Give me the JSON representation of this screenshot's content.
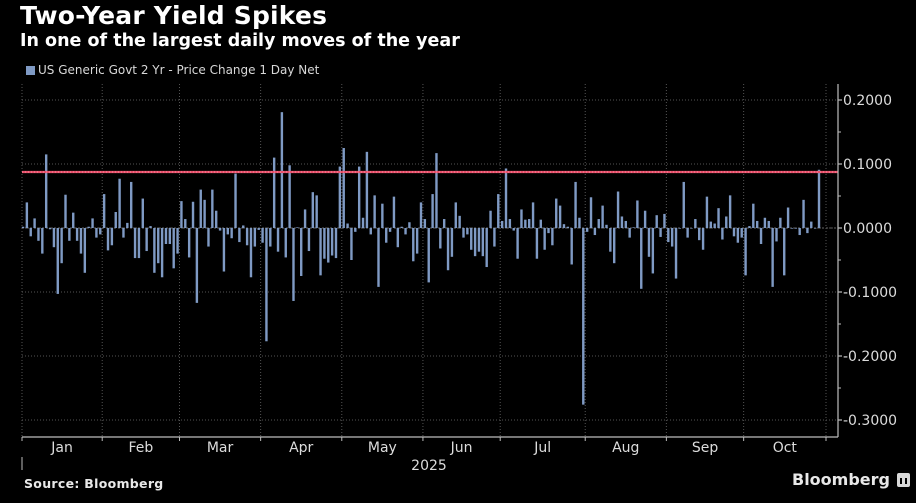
{
  "header": {
    "title": "Two-Year Yield Spikes",
    "subtitle": "In one of the largest daily moves of the year"
  },
  "legend": {
    "label": "US Generic Govt 2 Yr - Price Change 1 Day Net",
    "color": "#7f9ac4"
  },
  "footer": {
    "source": "Source: Bloomberg",
    "brand": "Bloomberg"
  },
  "colors": {
    "bar": "#7f9ac4",
    "reference_line": "#e8506a",
    "grid": "#555555",
    "axis": "#bdbdbd"
  },
  "chart_data": {
    "type": "bar",
    "title": "Two-Year Yield Spikes",
    "subtitle": "In one of the largest daily moves of the year",
    "xlabel": "2025",
    "ylabel": "",
    "ylim": [
      -0.33,
      0.225
    ],
    "y_ticks": [
      0.2,
      0.1,
      0.0,
      -0.1,
      -0.2,
      -0.3
    ],
    "y_tick_labels": [
      "0.2000",
      "0.1000",
      "0.0000",
      "-0.1000",
      "-0.2000",
      "-0.3000"
    ],
    "y_axis_side": "right",
    "grid": true,
    "legend_position": "top-left",
    "reference_line": {
      "value": 0.0875,
      "color": "#e8506a"
    },
    "months": [
      {
        "label": "Jan",
        "start_index": 0
      },
      {
        "label": "Feb",
        "start_index": 21
      },
      {
        "label": "Mar",
        "start_index": 41
      },
      {
        "label": "Apr",
        "start_index": 62
      },
      {
        "label": "May",
        "start_index": 83
      },
      {
        "label": "Jun",
        "start_index": 104
      },
      {
        "label": "Jul",
        "start_index": 124
      },
      {
        "label": "Aug",
        "start_index": 146
      },
      {
        "label": "Sep",
        "start_index": 167
      },
      {
        "label": "Oct",
        "start_index": 187
      }
    ],
    "year_label": "2025",
    "series": [
      {
        "name": "US Generic Govt 2 Yr - Price Change 1 Day Net",
        "values": [
          0.002,
          0.04,
          -0.013,
          0.015,
          -0.02,
          -0.04,
          0.115,
          -0.002,
          -0.03,
          -0.103,
          -0.055,
          0.052,
          -0.02,
          0.024,
          -0.02,
          -0.04,
          -0.07,
          0.002,
          0.015,
          -0.015,
          -0.01,
          0.053,
          -0.035,
          -0.027,
          0.025,
          0.077,
          -0.015,
          0.008,
          0.072,
          -0.047,
          -0.047,
          0.046,
          -0.036,
          0.003,
          -0.07,
          -0.055,
          -0.077,
          -0.025,
          -0.025,
          -0.063,
          -0.04,
          0.042,
          0.014,
          -0.046,
          0.041,
          -0.117,
          0.06,
          0.044,
          -0.029,
          0.06,
          0.027,
          -0.004,
          -0.068,
          -0.01,
          -0.016,
          0.085,
          -0.022,
          0.004,
          -0.027,
          -0.077,
          -0.029,
          -0.003,
          -0.023,
          -0.177,
          -0.029,
          0.11,
          -0.037,
          0.181,
          -0.046,
          0.098,
          -0.114,
          0.001,
          -0.075,
          0.029,
          -0.036,
          0.056,
          0.051,
          -0.074,
          -0.048,
          -0.054,
          -0.043,
          -0.047,
          0.096,
          0.125,
          0.007,
          -0.05,
          -0.006,
          0.096,
          0.016,
          0.119,
          -0.01,
          0.051,
          -0.092,
          0.038,
          -0.023,
          -0.006,
          0.049,
          -0.03,
          0.002,
          -0.01,
          0.009,
          -0.052,
          -0.04,
          0.04,
          0.014,
          -0.085,
          0.053,
          0.117,
          -0.032,
          0.014,
          -0.066,
          -0.045,
          0.04,
          0.019,
          -0.015,
          -0.01,
          -0.034,
          -0.044,
          -0.037,
          -0.044,
          -0.061,
          0.027,
          -0.029,
          0.053,
          0.011,
          0.093,
          0.014,
          -0.004,
          -0.048,
          0.029,
          0.013,
          0.014,
          0.04,
          -0.048,
          0.013,
          -0.034,
          -0.008,
          -0.027,
          0.046,
          0.035,
          0.006,
          0.002,
          -0.057,
          0.072,
          0.016,
          -0.276,
          -0.006,
          0.048,
          -0.011,
          0.014,
          0.035,
          0.005,
          -0.037,
          -0.055,
          0.057,
          0.018,
          0.011,
          -0.015,
          0.001,
          0.043,
          -0.095,
          0.027,
          -0.045,
          -0.071,
          0.02,
          -0.014,
          0.022,
          -0.022,
          -0.029,
          -0.079,
          -0.001,
          0.072,
          -0.015,
          0.0,
          0.014,
          -0.019,
          -0.034,
          0.049,
          0.01,
          0.007,
          0.031,
          -0.018,
          0.018,
          0.051,
          -0.013,
          -0.023,
          -0.015,
          -0.074,
          0.003,
          0.038,
          0.011,
          -0.025,
          0.016,
          0.011,
          -0.092,
          -0.021,
          0.016,
          -0.074,
          0.032,
          -0.001,
          -0.001,
          -0.011,
          0.044,
          -0.008,
          0.01,
          -0.001,
          0.091
        ]
      }
    ]
  }
}
